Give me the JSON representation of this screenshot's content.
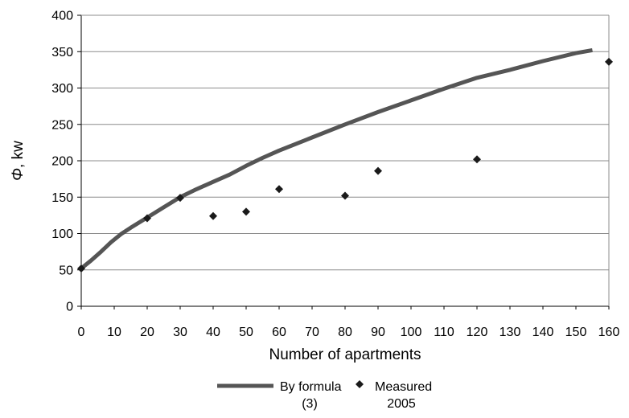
{
  "chart_data": {
    "type": "line",
    "xlabel": "Number of apartments",
    "ylabel": "Φ, kW",
    "ylabel_parts": {
      "symbol": "Φ",
      "unit": ", kw"
    },
    "xlim": [
      0,
      160
    ],
    "ylim": [
      0,
      400
    ],
    "xticks": [
      0,
      10,
      20,
      30,
      40,
      50,
      60,
      70,
      80,
      90,
      100,
      110,
      120,
      130,
      140,
      150,
      160
    ],
    "yticks": [
      0,
      50,
      100,
      150,
      200,
      250,
      300,
      350,
      400
    ],
    "grid": "horizontal",
    "legend_position": "bottom",
    "series": [
      {
        "name": "By formula (3)",
        "legend_lines": [
          "By formula",
          "(3)"
        ],
        "kind": "line",
        "color": "#555555",
        "x": [
          0,
          3,
          6,
          9,
          12,
          15,
          20,
          25,
          30,
          35,
          40,
          45,
          50,
          55,
          60,
          70,
          80,
          90,
          100,
          110,
          120,
          130,
          140,
          150,
          155
        ],
        "y": [
          52,
          63,
          75,
          88,
          99,
          108,
          122,
          136,
          150,
          161,
          171,
          181,
          193,
          204,
          214,
          232,
          250,
          267,
          283,
          299,
          314,
          325,
          337,
          348,
          352
        ]
      },
      {
        "name": "Measured 2005",
        "legend_lines": [
          "Measured",
          "2005"
        ],
        "kind": "scatter",
        "color": "#1a1a1a",
        "x": [
          0,
          20,
          30,
          40,
          50,
          60,
          80,
          90,
          120,
          160
        ],
        "y": [
          52,
          121,
          149,
          124,
          130,
          161,
          152,
          186,
          202,
          336
        ]
      }
    ]
  }
}
